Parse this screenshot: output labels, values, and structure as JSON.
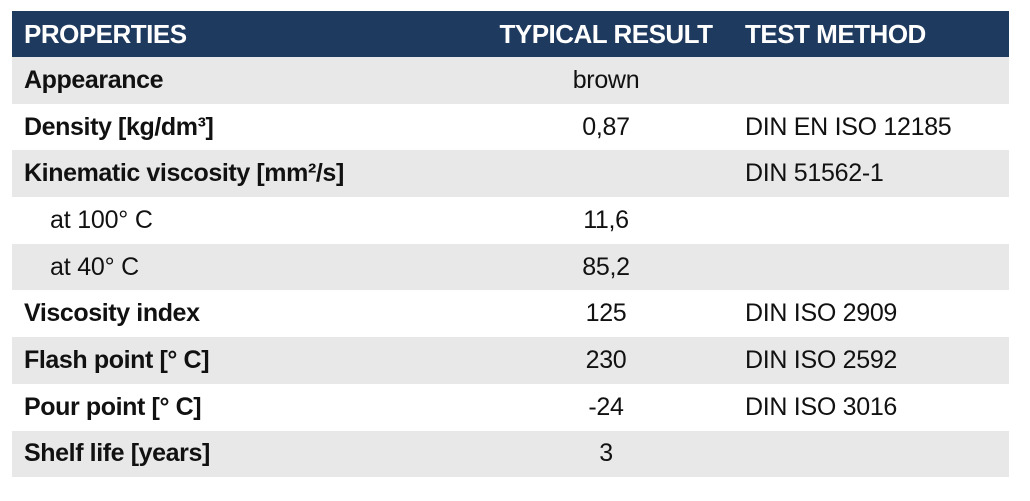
{
  "header": {
    "properties": "PROPERTIES",
    "typical_result": "TYPICAL RESULT",
    "test_method": "TEST METHOD"
  },
  "rows": [
    {
      "property": "Appearance",
      "result": "brown",
      "method": "",
      "indent": false
    },
    {
      "property": "Density [kg/dm³]",
      "result": "0,87",
      "method": "DIN EN ISO 12185",
      "indent": false
    },
    {
      "property": "Kinematic viscosity [mm²/s]",
      "result": "",
      "method": "DIN 51562-1",
      "indent": false
    },
    {
      "property": "at 100° C",
      "result": "11,6",
      "method": "",
      "indent": true
    },
    {
      "property": "at 40° C",
      "result": "85,2",
      "method": "",
      "indent": true
    },
    {
      "property": "Viscosity index",
      "result": "125",
      "method": "DIN ISO 2909",
      "indent": false
    },
    {
      "property": "Flash point [° C]",
      "result": "230",
      "method": "DIN ISO 2592",
      "indent": false
    },
    {
      "property": "Pour point [° C]",
      "result": "-24",
      "method": "DIN ISO 3016",
      "indent": false
    },
    {
      "property": "Shelf life [years]",
      "result": "3",
      "method": "",
      "indent": false
    }
  ],
  "colors": {
    "header_bg": "#1f3a5f",
    "header_text": "#ffffff",
    "row_shade": "#e8e8e8",
    "row_plain": "#ffffff"
  }
}
